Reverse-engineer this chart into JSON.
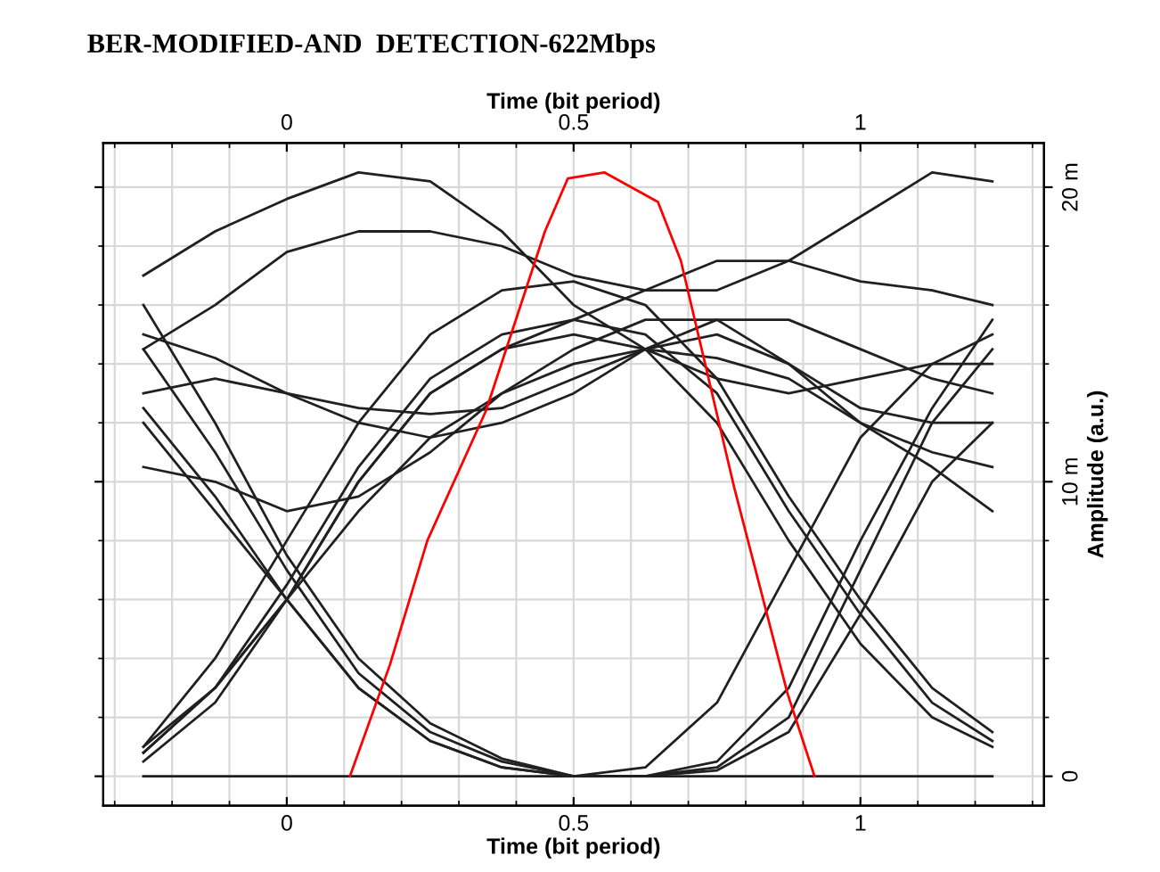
{
  "chart_data": {
    "type": "line",
    "title": "BER-MODIFIED-AND  DETECTION-622Mbps",
    "xlabel": "Time (bit period)",
    "x2label": "Time (bit period)",
    "ylabel": "Amplitude (a.u.)",
    "x": [
      -0.25,
      -0.125,
      0,
      0.125,
      0.25,
      0.375,
      0.5,
      0.625,
      0.75,
      0.875,
      1,
      1.125,
      1.23
    ],
    "xlim": [
      -0.32,
      1.32
    ],
    "xticks": [
      0,
      0.5,
      1
    ],
    "x2lim": [
      -0.32,
      1.32
    ],
    "x2ticks": [
      0,
      0.5,
      1
    ],
    "ylim": [
      -1,
      21.5
    ],
    "yticks": [
      0,
      {
        "value": 10,
        "label": "10 m"
      },
      {
        "value": 20,
        "label": "20 m"
      }
    ],
    "grid": true,
    "legend": false,
    "marker": "none",
    "line_style": "solid",
    "series": [
      {
        "color": "#202020",
        "values": [
          0,
          0,
          0,
          0,
          0,
          0,
          0,
          0,
          0,
          0,
          0,
          0,
          0
        ]
      },
      {
        "color": "#202020",
        "values": [
          14.5,
          11,
          7,
          3.5,
          1.5,
          0.5,
          0,
          0,
          0.3,
          2,
          7,
          12,
          14.5
        ]
      },
      {
        "color": "#202020",
        "values": [
          16,
          12,
          7.5,
          4,
          1.8,
          0.6,
          0,
          0,
          0.5,
          3,
          8,
          12.5,
          15.5
        ]
      },
      {
        "color": "#202020",
        "values": [
          12.5,
          9.5,
          6,
          3,
          1.2,
          0.3,
          0,
          0,
          0.2,
          1.5,
          5.5,
          10,
          12
        ]
      },
      {
        "color": "#202020",
        "values": [
          0.8,
          3,
          6.5,
          10.5,
          13.5,
          15,
          15.5,
          15,
          13,
          9,
          5.5,
          2.5,
          1.2
        ]
      },
      {
        "color": "#202020",
        "values": [
          0.5,
          2.5,
          6,
          10,
          13,
          14.5,
          15,
          14.5,
          12,
          8,
          4.5,
          2,
          1
        ]
      },
      {
        "color": "#202020",
        "values": [
          1,
          4,
          8,
          12,
          15,
          16.5,
          16.8,
          16,
          13.5,
          9.5,
          6,
          3,
          1.5
        ]
      },
      {
        "color": "#202020",
        "values": [
          17,
          18.5,
          19.6,
          20.5,
          20.2,
          18.5,
          16,
          14.5,
          13.5,
          13,
          13.5,
          14,
          14
        ]
      },
      {
        "color": "#202020",
        "values": [
          14.5,
          16,
          17.8,
          18.5,
          18.5,
          18,
          17,
          16.5,
          16.5,
          17.5,
          19,
          20.5,
          20.2
        ]
      },
      {
        "color": "#202020",
        "values": [
          12,
          9,
          6,
          3,
          1.2,
          0.3,
          0,
          0.3,
          2.5,
          7,
          11.5,
          14,
          15
        ]
      },
      {
        "color": "#202020",
        "values": [
          13,
          13.5,
          13,
          12.5,
          12.3,
          12.5,
          13.5,
          14.5,
          15,
          14,
          12.5,
          12,
          12
        ]
      },
      {
        "color": "#202020",
        "values": [
          15,
          14.2,
          13,
          12,
          11.5,
          12,
          13,
          14.5,
          15.5,
          15.5,
          14.5,
          13.5,
          13
        ]
      },
      {
        "color": "#202020",
        "values": [
          10.5,
          10,
          9,
          9.5,
          11,
          13,
          14.5,
          15.5,
          15.5,
          14,
          12,
          11,
          10.5
        ]
      },
      {
        "color": "#202020",
        "values": [
          0.8,
          3,
          6,
          10,
          13,
          14.5,
          15.5,
          16.5,
          17.5,
          17.5,
          16.8,
          16.5,
          16
        ]
      },
      {
        "color": "#202020",
        "values": [
          1,
          3,
          6,
          9,
          11.5,
          13,
          14,
          14.5,
          14.2,
          13.5,
          12,
          10.5,
          9
        ]
      },
      {
        "color": "#ff0000",
        "x": [
          0.11,
          0.18,
          0.245,
          0.347,
          0.45,
          0.49,
          0.554,
          0.647,
          0.687,
          0.78,
          0.873,
          0.92
        ],
        "values": [
          0,
          3.8,
          8,
          12.4,
          18.5,
          20.3,
          20.5,
          19.5,
          17.5,
          9.8,
          2.8,
          0
        ]
      }
    ]
  }
}
